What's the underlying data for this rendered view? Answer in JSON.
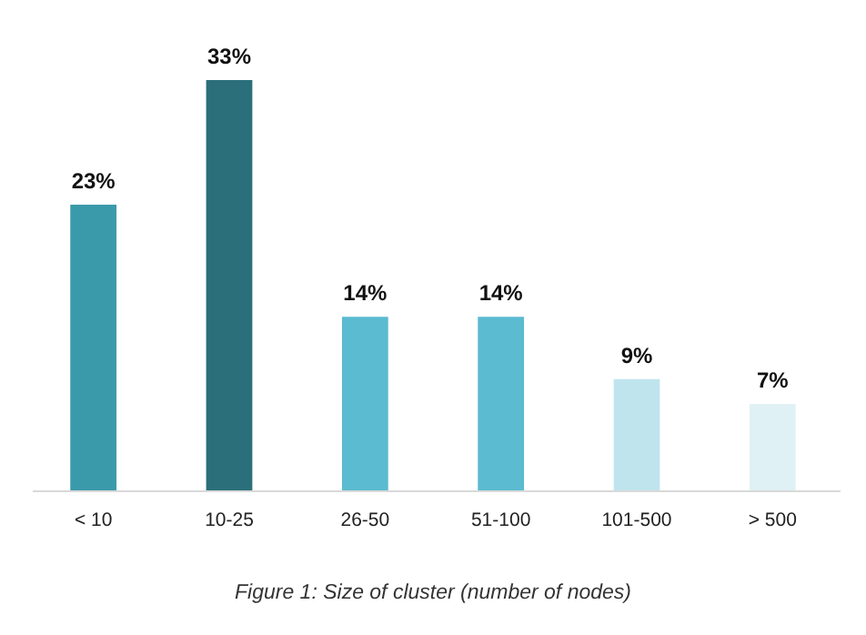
{
  "chart_data": {
    "type": "bar",
    "categories": [
      "< 10",
      "10-25",
      "26-50",
      "51-100",
      "101-500",
      "> 500"
    ],
    "values": [
      23,
      33,
      14,
      14,
      9,
      7
    ],
    "colors": [
      "#3b9aaa",
      "#2b6f7a",
      "#5bbbd0",
      "#5bbbd0",
      "#bfe4ee",
      "#dff1f5"
    ],
    "data_labels": true,
    "value_labels": [
      "23%",
      "33%",
      "14%",
      "14%",
      "9%",
      "7%"
    ],
    "annotations": [
      "Figure 1: Size of cluster (number of nodes)"
    ]
  }
}
